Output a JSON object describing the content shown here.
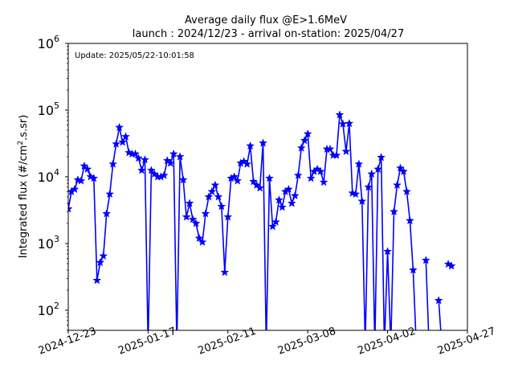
{
  "chart_data": {
    "type": "line",
    "title_line1": "Average daily flux @E>1.6MeV",
    "title_line2": "launch : 2024/12/23 - arrival on-station: 2025/04/27",
    "ylabel": "Integrated flux (#/cm².s.sr)",
    "ylabel_parts": {
      "pre": "Integrated flux (#/cm",
      "sup": "2",
      "post": ".s.sr)"
    },
    "annotation": "Update: 2025/05/22-10:01:58",
    "y_scale": "log",
    "ylim": [
      50,
      1000000
    ],
    "xlim": [
      "2024-12-23",
      "2025-04-27"
    ],
    "x_ticks": [
      "2024-12-23",
      "2025-01-17",
      "2025-02-11",
      "2025-03-08",
      "2025-04-02",
      "2025-04-27"
    ],
    "y_ticks": [
      {
        "value": 100,
        "base": "10",
        "exp": "2"
      },
      {
        "value": 1000,
        "base": "10",
        "exp": "3"
      },
      {
        "value": 10000,
        "base": "10",
        "exp": "4"
      },
      {
        "value": 100000,
        "base": "10",
        "exp": "5"
      },
      {
        "value": 1000000,
        "base": "10",
        "exp": "6"
      }
    ],
    "grid": false,
    "color": "#0000ff",
    "marker": "star",
    "series": [
      {
        "values": [
          3300,
          6000,
          6500,
          9000,
          8700,
          14500,
          13000,
          10000,
          9500,
          280,
          520,
          650,
          2800,
          5500,
          15500,
          31000,
          55000,
          33000,
          40000,
          23000,
          22000,
          22000,
          19000,
          12500,
          18000,
          1,
          12500,
          11000,
          10000,
          10000,
          10500,
          17500,
          16000,
          22000,
          1,
          20000,
          9000,
          2500,
          4000,
          2300,
          2000,
          1200,
          1050,
          2800,
          5000,
          6000,
          7500,
          5000,
          3600,
          370,
          2500,
          9500,
          10000,
          8700,
          16000,
          17000,
          15500,
          29000,
          8500,
          7500,
          6800,
          32000,
          1,
          9500,
          1800,
          2100,
          4500,
          3500,
          6000,
          6500,
          4000,
          5200,
          10500,
          27000,
          35000,
          44000,
          9500,
          12000,
          13000,
          12000,
          8300,
          26000,
          26000,
          21000,
          21000,
          85000,
          62000,
          24000,
          63000,
          5700,
          5500,
          15500,
          4300,
          1,
          7000,
          11000,
          1,
          13000,
          19500,
          1,
          760,
          1,
          3000,
          7500,
          13500,
          12000,
          6000,
          2200,
          400,
          1,
          null,
          null,
          560,
          1,
          null,
          null,
          140,
          1,
          null,
          490,
          460
        ]
      }
    ]
  }
}
